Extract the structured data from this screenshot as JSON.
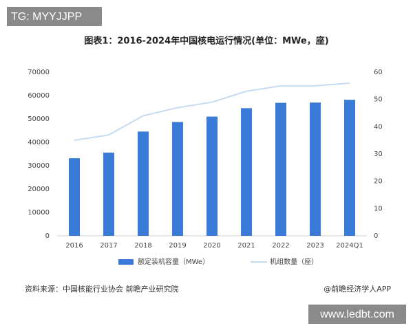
{
  "watermark_top": "TG: MYYJJPP",
  "watermark_bottom": "www.ledbt.com",
  "source": "资料来源：中国核能行业协会 前瞻产业研究院",
  "credit": "@前瞻经济学人APP",
  "chart_data": {
    "type": "bar",
    "title": "图表1：2016-2024年中国核电运行情况(单位：MWe，座)",
    "categories": [
      "2016",
      "2017",
      "2018",
      "2019",
      "2020",
      "2021",
      "2022",
      "2023",
      "2024Q1"
    ],
    "series": [
      {
        "name": "额定装机容量（MWe）",
        "type": "bar",
        "color": "#3b7bd8",
        "values": [
          33200,
          35600,
          44600,
          48700,
          51000,
          54600,
          56900,
          57000,
          58200
        ]
      },
      {
        "name": "机组数量（座）",
        "type": "line",
        "axis": "y2",
        "color": "#c6dbf1",
        "values": [
          35,
          37,
          44,
          47,
          49,
          53,
          55,
          55,
          56
        ]
      }
    ],
    "ylim": [
      0,
      70000
    ],
    "yticks": [
      0,
      10000,
      20000,
      30000,
      40000,
      50000,
      60000,
      70000
    ],
    "y2lim": [
      0,
      60
    ],
    "y2ticks": [
      0,
      10,
      20,
      30,
      40,
      50,
      60
    ],
    "legend": "bottom"
  }
}
